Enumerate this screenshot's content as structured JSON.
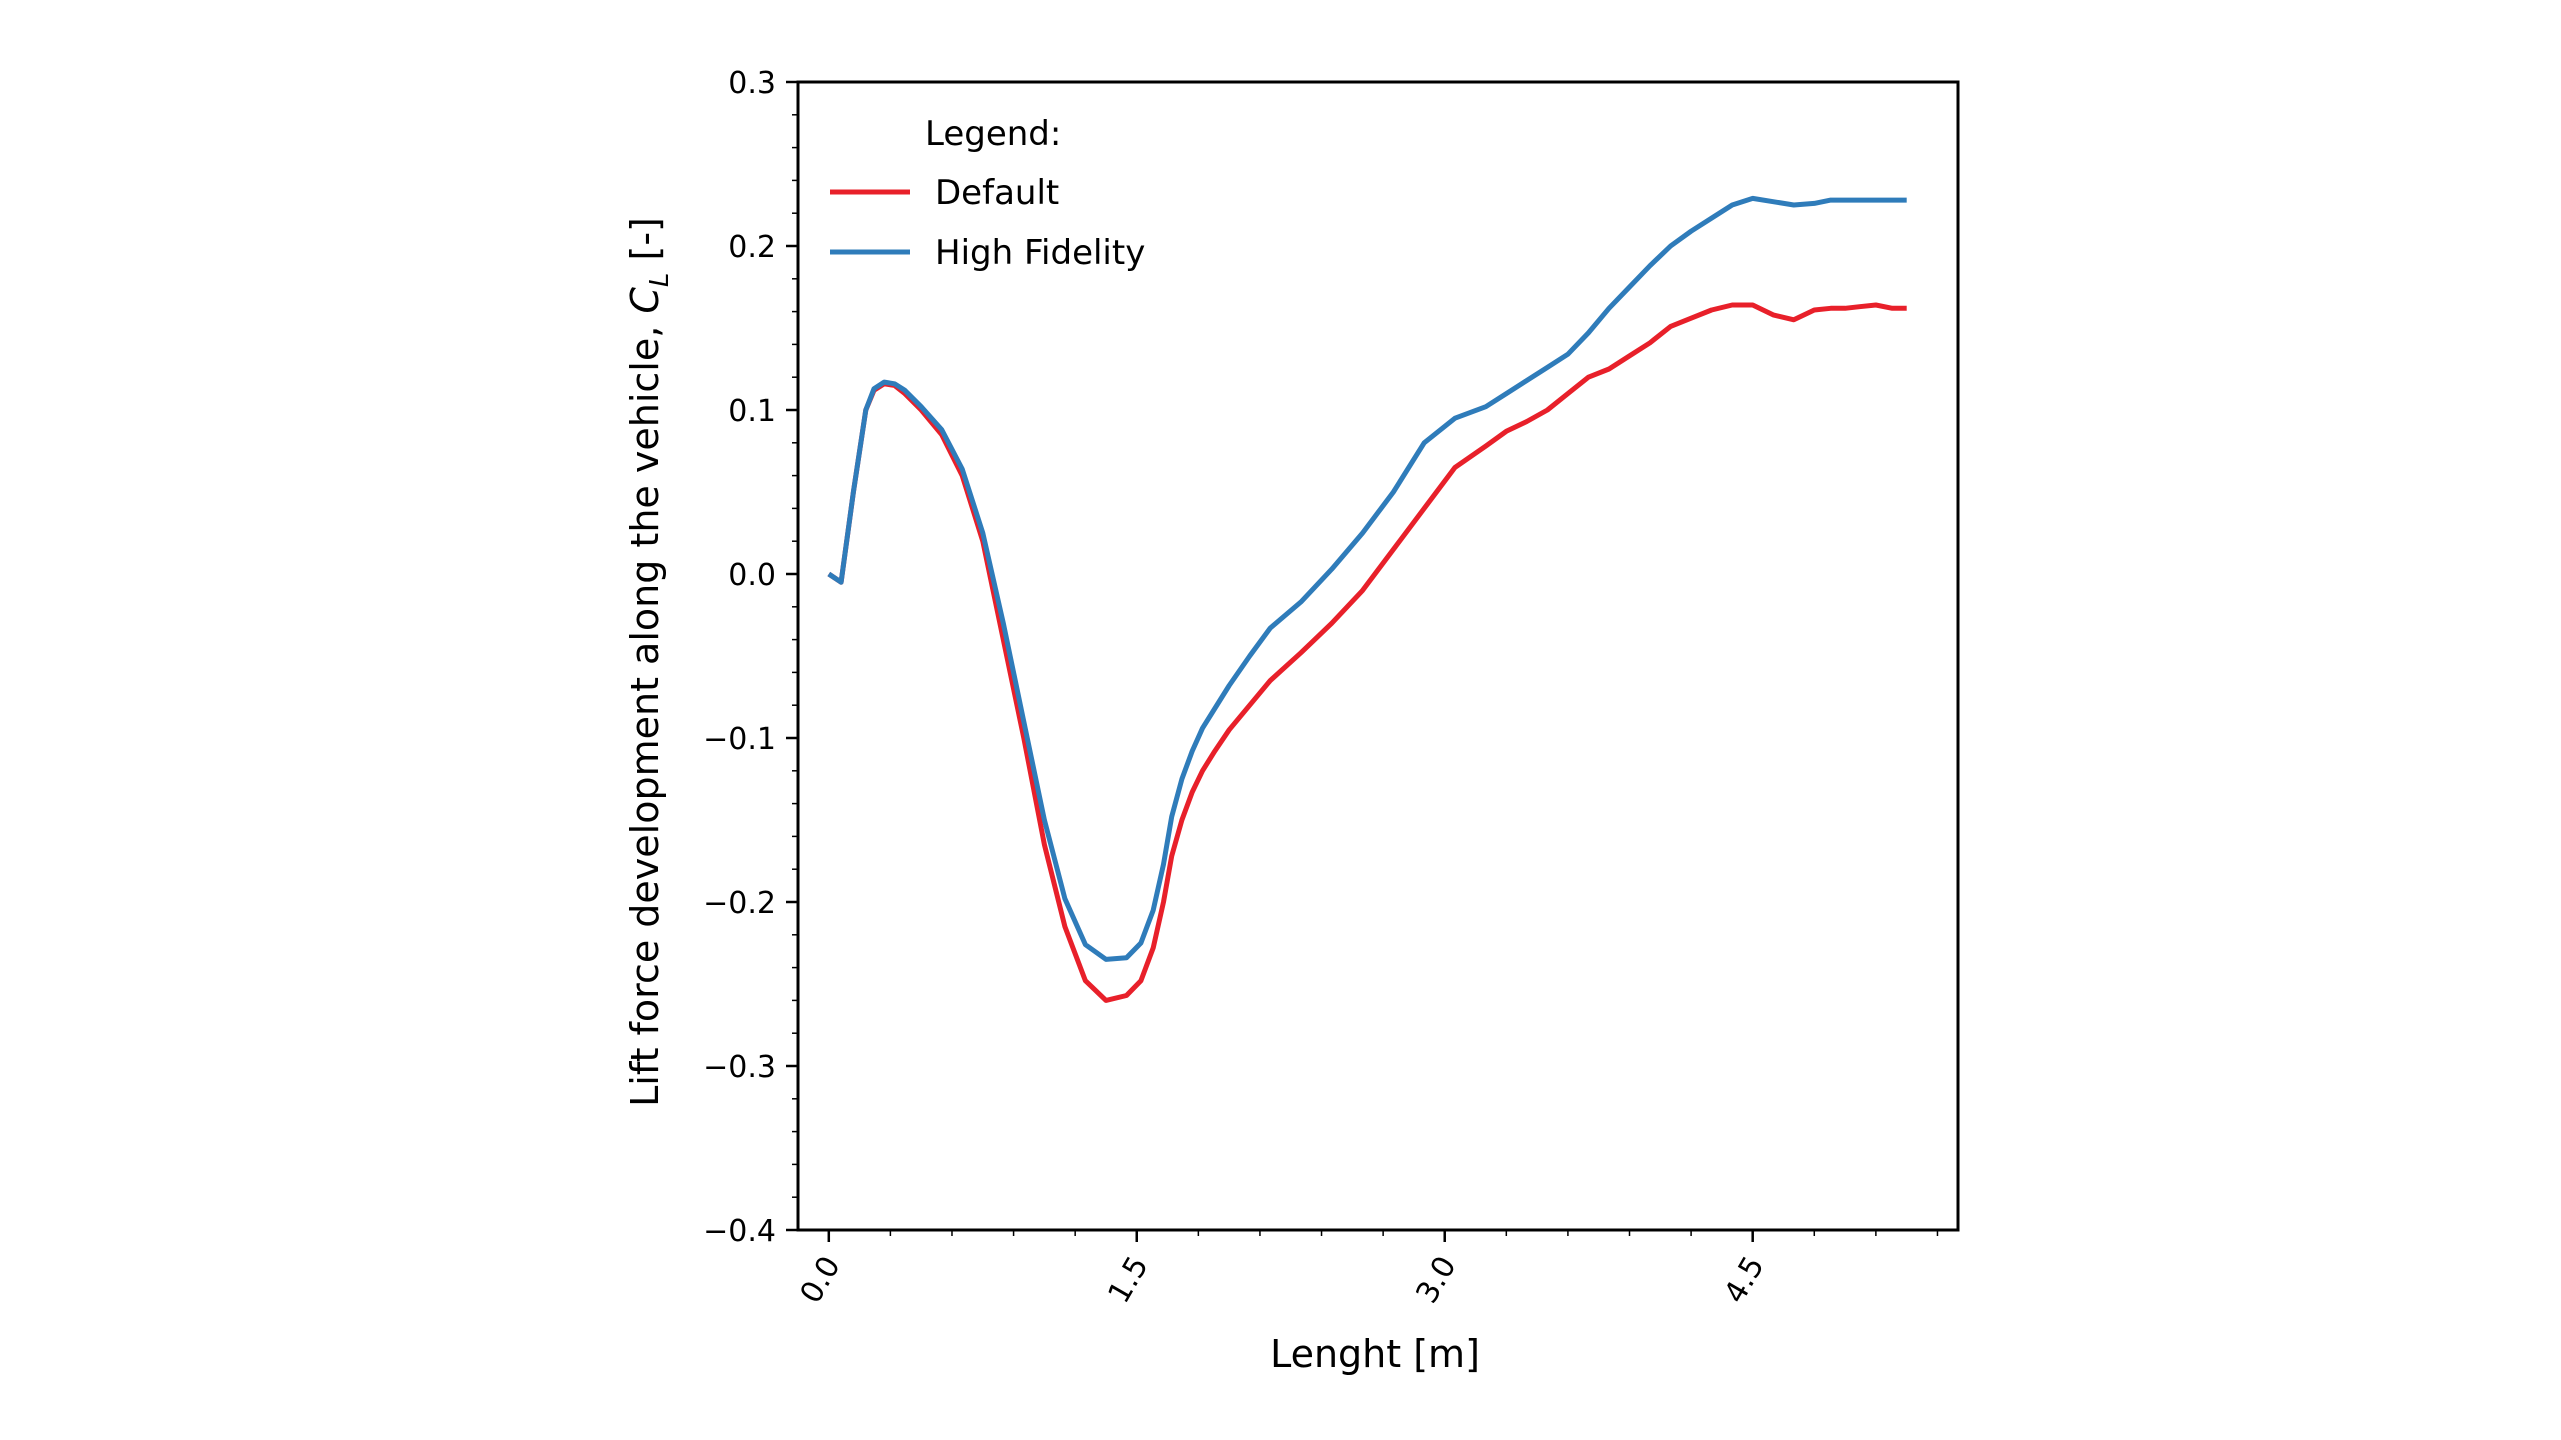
{
  "chart_data": {
    "type": "line",
    "xlabel": "Lenght [m]",
    "ylabel_prefix": "Lift force development along the vehicle, ",
    "ylabel_symbol": "C",
    "ylabel_subscript": "L",
    "ylabel_suffix": " [-]",
    "xlim": [
      -0.15,
      5.5
    ],
    "ylim": [
      -0.4,
      0.3
    ],
    "x_ticks": [
      0.0,
      1.5,
      3.0,
      4.5
    ],
    "x_tick_labels": [
      "0.0",
      "1.5",
      "3.0",
      "4.5"
    ],
    "y_ticks": [
      0.3,
      0.2,
      0.1,
      0.0,
      -0.1,
      -0.2,
      -0.3,
      -0.4
    ],
    "y_tick_labels": [
      "0.3",
      "0.2",
      "0.1",
      "0.0",
      "−0.1",
      "−0.2",
      "−0.3",
      "−0.4"
    ],
    "grid": false,
    "legend": {
      "title": "Legend:",
      "placement": "top-left"
    },
    "series": [
      {
        "name": "Default",
        "color": "#e8202a",
        "x": [
          0.0,
          0.06,
          0.12,
          0.18,
          0.22,
          0.27,
          0.32,
          0.37,
          0.45,
          0.55,
          0.65,
          0.75,
          0.85,
          0.95,
          1.05,
          1.15,
          1.25,
          1.35,
          1.45,
          1.52,
          1.58,
          1.63,
          1.67,
          1.72,
          1.77,
          1.82,
          1.88,
          1.95,
          2.05,
          2.15,
          2.3,
          2.45,
          2.6,
          2.75,
          2.9,
          3.05,
          3.2,
          3.3,
          3.4,
          3.5,
          3.6,
          3.7,
          3.8,
          3.9,
          4.0,
          4.1,
          4.2,
          4.3,
          4.4,
          4.5,
          4.6,
          4.7,
          4.8,
          4.88,
          4.95,
          5.02,
          5.1,
          5.18,
          5.25
        ],
        "y": [
          0.0,
          -0.005,
          0.05,
          0.1,
          0.112,
          0.116,
          0.115,
          0.11,
          0.1,
          0.085,
          0.06,
          0.02,
          -0.04,
          -0.1,
          -0.165,
          -0.215,
          -0.248,
          -0.26,
          -0.257,
          -0.248,
          -0.228,
          -0.2,
          -0.172,
          -0.15,
          -0.133,
          -0.12,
          -0.108,
          -0.095,
          -0.08,
          -0.065,
          -0.048,
          -0.03,
          -0.01,
          0.015,
          0.04,
          0.065,
          0.078,
          0.087,
          0.093,
          0.1,
          0.11,
          0.12,
          0.125,
          0.133,
          0.141,
          0.151,
          0.156,
          0.161,
          0.164,
          0.164,
          0.158,
          0.155,
          0.161,
          0.162,
          0.162,
          0.163,
          0.164,
          0.162,
          0.162
        ]
      },
      {
        "name": "High Fidelity",
        "color": "#2f7cba",
        "x": [
          0.0,
          0.06,
          0.12,
          0.18,
          0.22,
          0.27,
          0.32,
          0.37,
          0.45,
          0.55,
          0.65,
          0.75,
          0.85,
          0.95,
          1.05,
          1.15,
          1.25,
          1.35,
          1.45,
          1.52,
          1.58,
          1.63,
          1.67,
          1.72,
          1.77,
          1.82,
          1.88,
          1.95,
          2.05,
          2.15,
          2.3,
          2.45,
          2.6,
          2.75,
          2.9,
          3.05,
          3.2,
          3.3,
          3.4,
          3.5,
          3.6,
          3.7,
          3.8,
          3.9,
          4.0,
          4.1,
          4.2,
          4.3,
          4.4,
          4.5,
          4.6,
          4.7,
          4.8,
          4.88,
          4.95,
          5.02,
          5.1,
          5.18,
          5.25
        ],
        "y": [
          0.0,
          -0.005,
          0.05,
          0.1,
          0.113,
          0.117,
          0.116,
          0.112,
          0.102,
          0.088,
          0.064,
          0.025,
          -0.03,
          -0.09,
          -0.15,
          -0.198,
          -0.226,
          -0.235,
          -0.234,
          -0.225,
          -0.205,
          -0.177,
          -0.148,
          -0.125,
          -0.108,
          -0.094,
          -0.082,
          -0.068,
          -0.05,
          -0.033,
          -0.017,
          0.003,
          0.025,
          0.05,
          0.08,
          0.095,
          0.102,
          0.11,
          0.118,
          0.126,
          0.134,
          0.147,
          0.162,
          0.175,
          0.188,
          0.2,
          0.209,
          0.217,
          0.225,
          0.229,
          0.227,
          0.225,
          0.226,
          0.228,
          0.228,
          0.228,
          0.228,
          0.228,
          0.228
        ]
      }
    ]
  }
}
